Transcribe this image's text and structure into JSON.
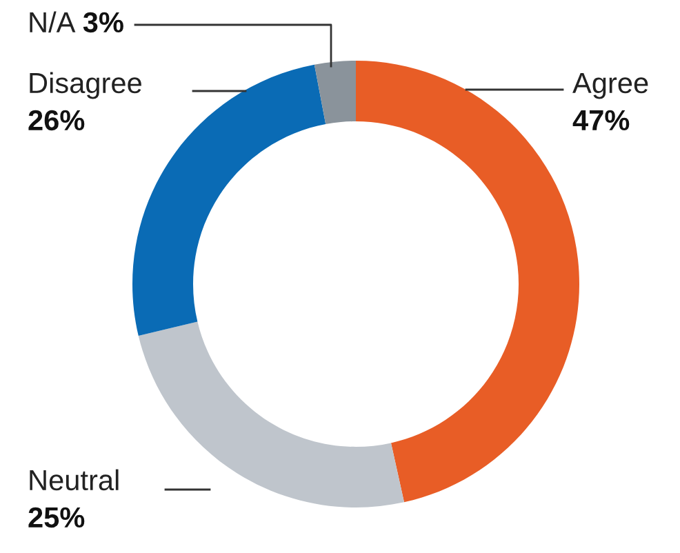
{
  "chart_data": {
    "type": "donut",
    "categories": [
      "Agree",
      "Neutral",
      "Disagree",
      "N/A"
    ],
    "values": [
      47,
      25,
      26,
      3
    ],
    "value_labels": [
      "47%",
      "25%",
      "26%",
      "3%"
    ],
    "colors": [
      "#e85d26",
      "#bfc5cc",
      "#0a6bb5",
      "#8a939b"
    ],
    "legend": false
  }
}
